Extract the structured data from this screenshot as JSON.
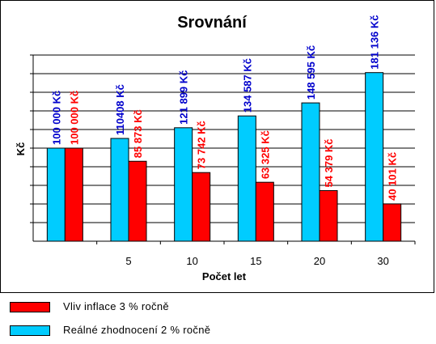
{
  "chart_data": {
    "type": "bar",
    "title": "Srovnání",
    "xlabel": "Počet let",
    "ylabel": "Kč",
    "categories": [
      "",
      "5",
      "10",
      "15",
      "20",
      "30"
    ],
    "series": [
      {
        "name": "Reálné zhodnocení 2 % ročně",
        "color": "#00ccff",
        "values": [
          100000,
          110408,
          121899,
          134587,
          148595,
          181136
        ],
        "labels": [
          "100 000 Kč",
          "110408 Kč",
          "121 899 Kč",
          "134 587 Kč",
          "148 595 Kč",
          "181 136 Kč"
        ],
        "label_color": "#0000cc"
      },
      {
        "name": "Vliv inflace 3 % ročně",
        "color": "#ff0000",
        "values": [
          100000,
          85873,
          73742,
          63325,
          54379,
          40101
        ],
        "labels": [
          "100 000 Kč",
          "85 873 Kč",
          "73 742 Kč",
          "63 325 Kč",
          "54 379 Kč",
          "40 101 Kč"
        ],
        "label_color": "#ff0000"
      }
    ],
    "ylim": [
      0,
      200000
    ],
    "grid": true,
    "legend_position": "bottom-left"
  },
  "legend": [
    {
      "label": "Vliv inflace 3 % ročně",
      "color": "#ff0000"
    },
    {
      "label": "Reálné zhodnocení 2 % ročně",
      "color": "#00ccff"
    }
  ]
}
